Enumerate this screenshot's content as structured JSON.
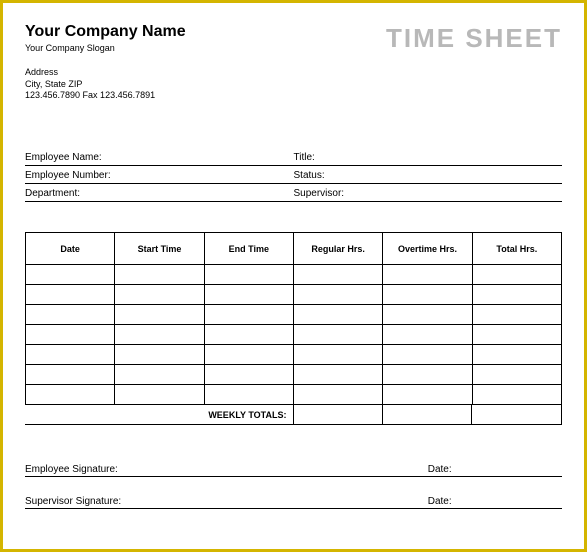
{
  "header": {
    "company_name": "Your Company Name",
    "slogan": "Your Company Slogan",
    "address_line1": "Address",
    "address_line2": "City, State ZIP",
    "phone_fax": "123.456.7890  Fax 123.456.7891",
    "title": "TIME SHEET"
  },
  "info": {
    "employee_name_label": "Employee Name:",
    "title_label": "Title:",
    "employee_number_label": "Employee Number:",
    "status_label": "Status:",
    "department_label": "Department:",
    "supervisor_label": "Supervisor:"
  },
  "table": {
    "columns": [
      "Date",
      "Start Time",
      "End Time",
      "Regular Hrs.",
      "Overtime Hrs.",
      "Total Hrs."
    ],
    "row_count": 7,
    "totals_label": "WEEKLY TOTALS:"
  },
  "signatures": {
    "employee_label": "Employee Signature:",
    "supervisor_label": "Supervisor Signature:",
    "date_label": "Date:"
  },
  "style": {
    "border_color": "#d4b500",
    "title_color": "#b8b8b8",
    "text_color": "#000000",
    "line_color": "#000000",
    "background": "#ffffff"
  }
}
